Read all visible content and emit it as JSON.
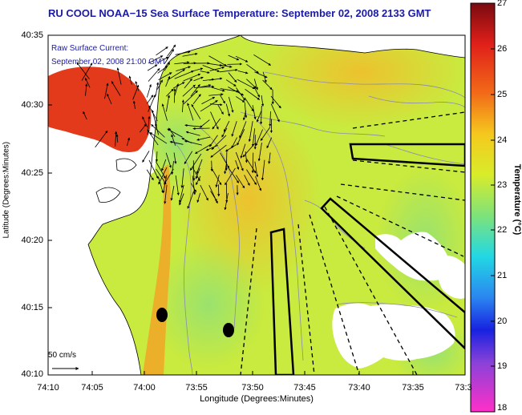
{
  "title": "RU COOL  NOAA−15  Sea Surface Temperature:  September 02, 2008 2133 GMT",
  "current_label": {
    "line1": "Raw Surface Current:",
    "line2": "September 02, 2008 21:00 GMT"
  },
  "scale_label": "50 cm/s",
  "axes": {
    "x_title": "Longitude (Degrees:Minutes)",
    "y_title": "Latitude (Degrees:Minutes)",
    "x_ticks": [
      "74:10",
      "74:05",
      "74:00",
      "73:55",
      "73:50",
      "73:45",
      "73:40",
      "73:35",
      "73:3"
    ],
    "y_ticks": [
      "40:35",
      "40:30",
      "40:25",
      "40:20",
      "40:15",
      "40:10"
    ]
  },
  "colorbar": {
    "title": "Temperature (°C)",
    "ticks": [
      "27",
      "26",
      "25",
      "24",
      "23",
      "22",
      "21",
      "20",
      "19",
      "18"
    ]
  },
  "colors": {
    "title": "#1a1aa8",
    "water": "#c9ea3e",
    "land": "#ffffff"
  }
}
